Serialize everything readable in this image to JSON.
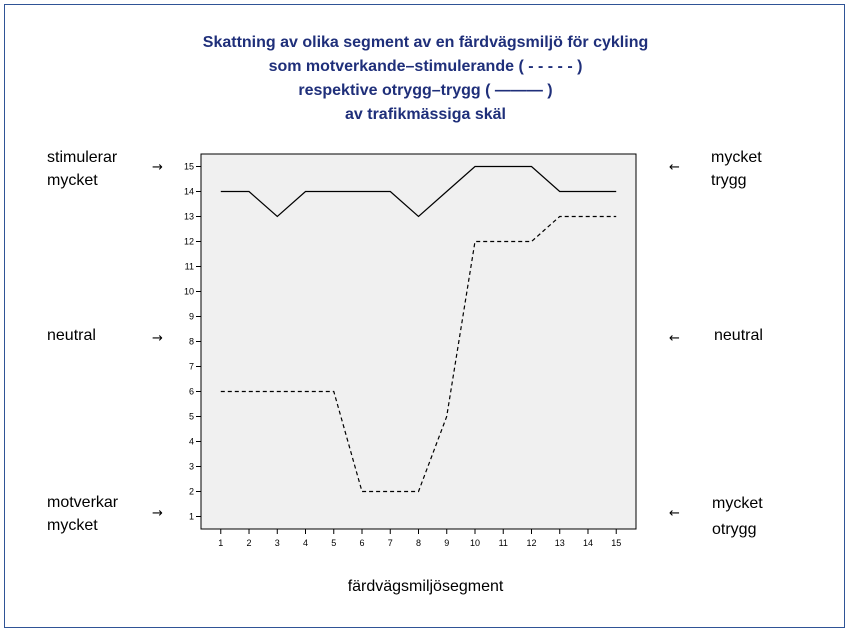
{
  "chart_data": {
    "type": "line",
    "title_lines": [
      "Skattning av olika segment av en färdvägsmiljö för cykling",
      "som motverkande–stimulerande ( - - - - - )",
      "respektive otrygg–trygg ( ——— )",
      "av trafikmässiga skäl"
    ],
    "xlabel": "färdvägsmiljösegment",
    "x": [
      1,
      2,
      3,
      4,
      5,
      6,
      7,
      8,
      9,
      10,
      11,
      12,
      13,
      14,
      15
    ],
    "ylim": [
      0.5,
      15.5
    ],
    "yticks": [
      "1",
      "2",
      "3",
      "4",
      "5",
      "6",
      "7",
      "8",
      "9",
      "10",
      "11",
      "12",
      "13",
      "14",
      "15"
    ],
    "xticks": [
      "1",
      "2",
      "3",
      "4",
      "5",
      "6",
      "7",
      "8",
      "9",
      "10",
      "11",
      "12",
      "13",
      "14",
      "15"
    ],
    "series": [
      {
        "name": "otrygg–trygg",
        "style": "solid",
        "values": [
          14,
          14,
          13,
          14,
          14,
          14,
          14,
          13,
          14,
          15,
          15,
          15,
          14,
          14,
          14
        ]
      },
      {
        "name": "motverkande–stimulerande",
        "style": "dashed",
        "values": [
          6,
          6,
          6,
          6,
          6,
          2,
          2,
          2,
          5,
          12,
          12,
          12,
          13,
          13,
          13
        ]
      }
    ],
    "left_annotations": {
      "top": [
        "stimulerar",
        "mycket"
      ],
      "middle": [
        "neutral"
      ],
      "bottom": [
        "motverkar",
        "mycket"
      ]
    },
    "right_annotations": {
      "top": [
        "mycket",
        "trygg"
      ],
      "middle": [
        "neutral"
      ],
      "bottom": [
        "mycket",
        "otrygg"
      ]
    },
    "arrow_glyph_left": "→",
    "arrow_glyph_right": "←",
    "colors": {
      "plot_background": "#f0f0f0",
      "line": "#000000",
      "title": "#1f2f7a",
      "frame": "#2f5496"
    }
  }
}
